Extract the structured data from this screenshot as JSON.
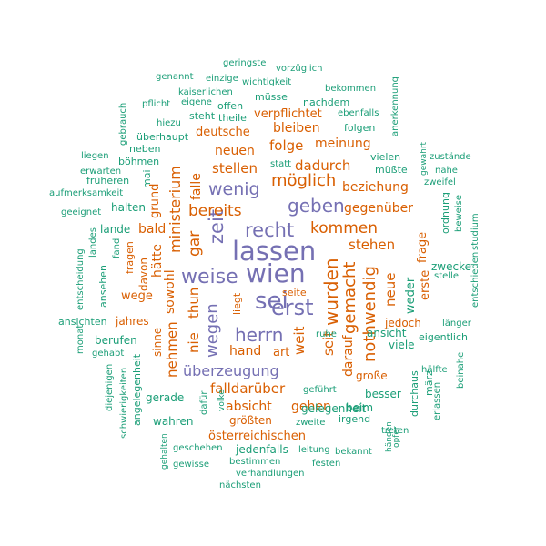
{
  "palette": {
    "purple": "#7570b3",
    "orange": "#d95f02",
    "green": "#1b9e77"
  },
  "words": [
    {
      "text": "wien",
      "color": "purple"
    },
    {
      "text": "lassen",
      "color": "purple"
    },
    {
      "text": "sei",
      "color": "purple"
    },
    {
      "text": "erst",
      "color": "purple"
    },
    {
      "text": "weise",
      "color": "purple"
    },
    {
      "text": "recht",
      "color": "purple"
    },
    {
      "text": "herrn",
      "color": "purple"
    },
    {
      "text": "geben",
      "color": "purple"
    },
    {
      "text": "wenig",
      "color": "purple"
    },
    {
      "text": "zeit",
      "color": "purple"
    },
    {
      "text": "überzeugung",
      "color": "purple"
    },
    {
      "text": "wegen",
      "color": "purple"
    },
    {
      "text": "möglich",
      "color": "orange"
    },
    {
      "text": "wurden",
      "color": "orange"
    },
    {
      "text": "gemacht",
      "color": "orange"
    },
    {
      "text": "nothwendig",
      "color": "orange"
    },
    {
      "text": "ministerium",
      "color": "orange"
    },
    {
      "text": "kommen",
      "color": "orange"
    },
    {
      "text": "bereits",
      "color": "orange"
    },
    {
      "text": "dadurch",
      "color": "orange"
    },
    {
      "text": "gar",
      "color": "orange"
    },
    {
      "text": "stehen",
      "color": "orange"
    },
    {
      "text": "neue",
      "color": "orange"
    },
    {
      "text": "stellen",
      "color": "orange"
    },
    {
      "text": "gegenüber",
      "color": "orange"
    },
    {
      "text": "beziehung",
      "color": "orange"
    },
    {
      "text": "meinung",
      "color": "orange"
    },
    {
      "text": "folge",
      "color": "orange"
    },
    {
      "text": "neuen",
      "color": "orange"
    },
    {
      "text": "bleiben",
      "color": "orange"
    },
    {
      "text": "deutsche",
      "color": "orange"
    },
    {
      "text": "verpflichtet",
      "color": "orange"
    },
    {
      "text": "falle",
      "color": "orange"
    },
    {
      "text": "grund",
      "color": "orange"
    },
    {
      "text": "hätte",
      "color": "orange"
    },
    {
      "text": "sowohl",
      "color": "orange"
    },
    {
      "text": "thun",
      "color": "orange"
    },
    {
      "text": "nie",
      "color": "orange"
    },
    {
      "text": "nehmen",
      "color": "orange"
    },
    {
      "text": "weit",
      "color": "orange"
    },
    {
      "text": "seit",
      "color": "orange"
    },
    {
      "text": "darauf",
      "color": "orange"
    },
    {
      "text": "bald",
      "color": "orange"
    },
    {
      "text": "wege",
      "color": "orange"
    },
    {
      "text": "hand",
      "color": "orange"
    },
    {
      "text": "art",
      "color": "orange"
    },
    {
      "text": "falldarüber",
      "color": "orange"
    },
    {
      "text": "absicht",
      "color": "orange"
    },
    {
      "text": "gehen",
      "color": "orange"
    },
    {
      "text": "größten",
      "color": "orange"
    },
    {
      "text": "österreichischen",
      "color": "orange"
    },
    {
      "text": "große",
      "color": "orange"
    },
    {
      "text": "jedoch",
      "color": "orange"
    },
    {
      "text": "erste",
      "color": "orange"
    },
    {
      "text": "frage",
      "color": "orange"
    },
    {
      "text": "seite",
      "color": "orange"
    },
    {
      "text": "jahres",
      "color": "orange"
    },
    {
      "text": "sinne",
      "color": "orange"
    },
    {
      "text": "davon",
      "color": "orange"
    },
    {
      "text": "fragen",
      "color": "orange"
    },
    {
      "text": "liegt",
      "color": "orange"
    },
    {
      "text": "lande",
      "color": "green"
    },
    {
      "text": "halten",
      "color": "green"
    },
    {
      "text": "mai",
      "color": "green"
    },
    {
      "text": "böhmen",
      "color": "green"
    },
    {
      "text": "neben",
      "color": "green"
    },
    {
      "text": "früheren",
      "color": "green"
    },
    {
      "text": "erwarten",
      "color": "green"
    },
    {
      "text": "aufmerksamkeit",
      "color": "green"
    },
    {
      "text": "geeignet",
      "color": "green"
    },
    {
      "text": "liegen",
      "color": "green"
    },
    {
      "text": "gebrauch",
      "color": "green"
    },
    {
      "text": "hiezu",
      "color": "green"
    },
    {
      "text": "überhaupt",
      "color": "green"
    },
    {
      "text": "steht",
      "color": "green"
    },
    {
      "text": "theile",
      "color": "green"
    },
    {
      "text": "offen",
      "color": "green"
    },
    {
      "text": "pflicht",
      "color": "green"
    },
    {
      "text": "eigene",
      "color": "green"
    },
    {
      "text": "kaiserlichen",
      "color": "green"
    },
    {
      "text": "müsse",
      "color": "green"
    },
    {
      "text": "wichtigkeit",
      "color": "green"
    },
    {
      "text": "nachdem",
      "color": "green"
    },
    {
      "text": "genannt",
      "color": "green"
    },
    {
      "text": "einzige",
      "color": "green"
    },
    {
      "text": "geringste",
      "color": "green"
    },
    {
      "text": "vorzüglich",
      "color": "green"
    },
    {
      "text": "bekommen",
      "color": "green"
    },
    {
      "text": "ebenfalls",
      "color": "green"
    },
    {
      "text": "folgen",
      "color": "green"
    },
    {
      "text": "anerkennung",
      "color": "green"
    },
    {
      "text": "vielen",
      "color": "green"
    },
    {
      "text": "müßte",
      "color": "green"
    },
    {
      "text": "zustände",
      "color": "green"
    },
    {
      "text": "nahe",
      "color": "green"
    },
    {
      "text": "gewährt",
      "color": "green"
    },
    {
      "text": "zweifel",
      "color": "green"
    },
    {
      "text": "ordnung",
      "color": "green"
    },
    {
      "text": "beweise",
      "color": "green"
    },
    {
      "text": "studium",
      "color": "green"
    },
    {
      "text": "entschieden",
      "color": "green"
    },
    {
      "text": "zwecke",
      "color": "green"
    },
    {
      "text": "stelle",
      "color": "green"
    },
    {
      "text": "weder",
      "color": "green"
    },
    {
      "text": "länger",
      "color": "green"
    },
    {
      "text": "eigentlich",
      "color": "green"
    },
    {
      "text": "hälfte",
      "color": "green"
    },
    {
      "text": "viele",
      "color": "green"
    },
    {
      "text": "ansicht",
      "color": "green"
    },
    {
      "text": "durchaus",
      "color": "green"
    },
    {
      "text": "märz",
      "color": "green"
    },
    {
      "text": "beinahe",
      "color": "green"
    },
    {
      "text": "erlassen",
      "color": "green"
    },
    {
      "text": "besser",
      "color": "green"
    },
    {
      "text": "beim",
      "color": "green"
    },
    {
      "text": "irgend",
      "color": "green"
    },
    {
      "text": "gelegenheit",
      "color": "green"
    },
    {
      "text": "treten",
      "color": "green"
    },
    {
      "text": "opfer",
      "color": "green"
    },
    {
      "text": "händen",
      "color": "green"
    },
    {
      "text": "geführt",
      "color": "green"
    },
    {
      "text": "zweite",
      "color": "green"
    },
    {
      "text": "leitung",
      "color": "green"
    },
    {
      "text": "bekannt",
      "color": "green"
    },
    {
      "text": "festen",
      "color": "green"
    },
    {
      "text": "jedenfalls",
      "color": "green"
    },
    {
      "text": "bestimmen",
      "color": "green"
    },
    {
      "text": "verhandlungen",
      "color": "green"
    },
    {
      "text": "nächsten",
      "color": "green"
    },
    {
      "text": "geschehen",
      "color": "green"
    },
    {
      "text": "gewisse",
      "color": "green"
    },
    {
      "text": "gehalten",
      "color": "green"
    },
    {
      "text": "volke",
      "color": "green"
    },
    {
      "text": "dafür",
      "color": "green"
    },
    {
      "text": "wahren",
      "color": "green"
    },
    {
      "text": "gerade",
      "color": "green"
    },
    {
      "text": "angelegenheit",
      "color": "green"
    },
    {
      "text": "schwierigkeiten",
      "color": "green"
    },
    {
      "text": "diejenigen",
      "color": "green"
    },
    {
      "text": "gehabt",
      "color": "green"
    },
    {
      "text": "monat",
      "color": "green"
    },
    {
      "text": "ansichten",
      "color": "green"
    },
    {
      "text": "entscheidung",
      "color": "green"
    },
    {
      "text": "landes",
      "color": "green"
    },
    {
      "text": "fand",
      "color": "green"
    },
    {
      "text": "ansehen",
      "color": "green"
    },
    {
      "text": "berufen",
      "color": "green"
    },
    {
      "text": "ruhe",
      "color": "green"
    },
    {
      "text": "statt",
      "color": "green"
    }
  ]
}
